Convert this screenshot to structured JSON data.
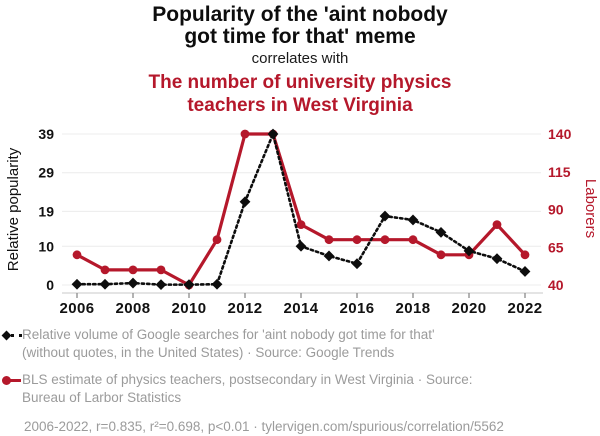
{
  "title": {
    "line1": "Popularity of the 'aint nobody",
    "line2": "got time for that' meme"
  },
  "connector": "correlates with",
  "subtitle": {
    "line1": "The number of university physics",
    "line2": "teachers in West Virginia"
  },
  "colors": {
    "accent_red": "#b5182b",
    "series_black": "#0d0d0d",
    "footer_gray": "#9b9b9b",
    "gridline": "#ececec",
    "axis_line": "#c9c9c9",
    "tick_mark": "#8a8a8a"
  },
  "chart_data": {
    "type": "line",
    "x": [
      2006,
      2007,
      2008,
      2009,
      2010,
      2011,
      2012,
      2013,
      2014,
      2015,
      2016,
      2017,
      2018,
      2019,
      2020,
      2021,
      2022
    ],
    "x_ticks": [
      2006,
      2008,
      2010,
      2012,
      2014,
      2016,
      2018,
      2020,
      2022
    ],
    "grid": "horizontal",
    "left_axis": {
      "label": "Relative popularity",
      "ticks": [
        0,
        10,
        19,
        29,
        39
      ],
      "range": [
        0,
        39
      ]
    },
    "right_axis": {
      "label": "Laborers",
      "ticks": [
        40,
        65,
        90,
        115,
        140
      ],
      "range": [
        40,
        140
      ]
    },
    "series": [
      {
        "name": "Relative volume of Google searches for 'aint nobody got time for that'",
        "axis": "left",
        "color": "#0d0d0d",
        "style": "dotted",
        "marker": "diamond",
        "values": [
          0.2,
          0.2,
          0.5,
          0.1,
          0.1,
          0.2,
          21.5,
          39,
          10,
          7.5,
          5.5,
          17.8,
          16.8,
          13.6,
          8.8,
          6.8,
          3.5
        ]
      },
      {
        "name": "BLS estimate of physics teachers, postsecondary in West Virginia",
        "axis": "right",
        "color": "#b5182b",
        "style": "solid",
        "marker": "circle",
        "values": [
          60,
          50,
          50,
          50,
          40,
          70,
          140,
          140,
          80,
          70,
          70,
          70,
          70,
          60,
          60,
          80,
          60
        ]
      }
    ]
  },
  "legend": {
    "items": [
      {
        "marker": "black-diamond-dotted-line",
        "lines": [
          "Relative volume of Google searches for 'aint nobody got time for that'",
          "(without quotes, in the United States) · Source: Google Trends"
        ]
      },
      {
        "marker": "red-circle-solid-line",
        "lines": [
          "BLS estimate of physics teachers, postsecondary in West Virginia · Source:",
          "Bureau of Larbor Statistics"
        ]
      }
    ]
  },
  "footer_note": "2006-2022, r=0.835, r²=0.698, p<0.01 · tylervigen.com/spurious/correlation/5562"
}
